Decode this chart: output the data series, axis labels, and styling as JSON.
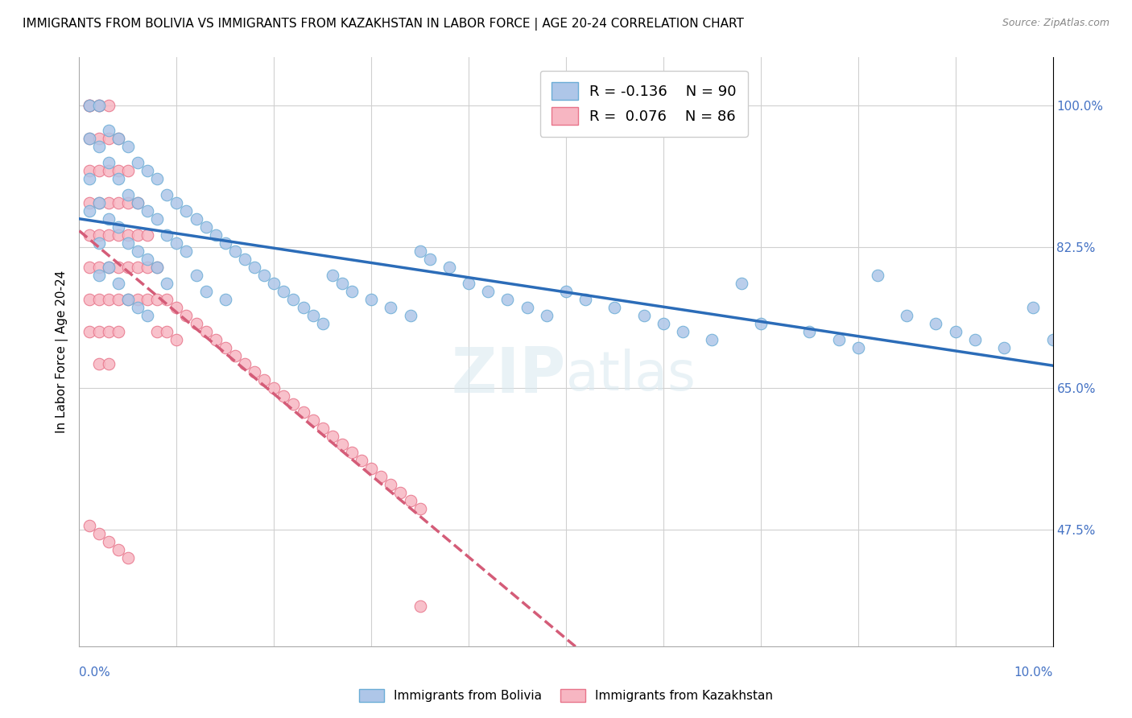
{
  "title": "IMMIGRANTS FROM BOLIVIA VS IMMIGRANTS FROM KAZAKHSTAN IN LABOR FORCE | AGE 20-24 CORRELATION CHART",
  "source_text": "Source: ZipAtlas.com",
  "ylabel": "In Labor Force | Age 20-24",
  "y_ticks": [
    0.475,
    0.65,
    0.825,
    1.0
  ],
  "y_tick_labels": [
    "47.5%",
    "65.0%",
    "82.5%",
    "100.0%"
  ],
  "xmin": 0.0,
  "xmax": 0.1,
  "ymin": 0.33,
  "ymax": 1.06,
  "bolivia_color": "#aec6e8",
  "bolivia_edge_color": "#6badd6",
  "kazakhstan_color": "#f7b6c2",
  "kazakhstan_edge_color": "#e8748a",
  "trend_bolivia_color": "#2b6cb8",
  "trend_kazakhstan_color": "#d45c78",
  "legend_R_bolivia": "-0.136",
  "legend_N_bolivia": "90",
  "legend_R_kazakhstan": "0.076",
  "legend_N_kazakhstan": "86",
  "watermark": "ZIPatlas",
  "bolivia_x": [
    0.001,
    0.001,
    0.001,
    0.001,
    0.002,
    0.002,
    0.002,
    0.002,
    0.002,
    0.003,
    0.003,
    0.003,
    0.003,
    0.004,
    0.004,
    0.004,
    0.004,
    0.005,
    0.005,
    0.005,
    0.005,
    0.006,
    0.006,
    0.006,
    0.006,
    0.007,
    0.007,
    0.007,
    0.007,
    0.008,
    0.008,
    0.008,
    0.009,
    0.009,
    0.009,
    0.01,
    0.01,
    0.011,
    0.011,
    0.012,
    0.012,
    0.013,
    0.013,
    0.014,
    0.015,
    0.015,
    0.016,
    0.017,
    0.018,
    0.019,
    0.02,
    0.021,
    0.022,
    0.023,
    0.024,
    0.025,
    0.026,
    0.027,
    0.028,
    0.03,
    0.032,
    0.034,
    0.035,
    0.036,
    0.038,
    0.04,
    0.042,
    0.044,
    0.046,
    0.048,
    0.05,
    0.052,
    0.055,
    0.058,
    0.06,
    0.062,
    0.065,
    0.068,
    0.07,
    0.075,
    0.078,
    0.08,
    0.082,
    0.085,
    0.088,
    0.09,
    0.092,
    0.095,
    0.098,
    0.1
  ],
  "bolivia_y": [
    1.0,
    0.96,
    0.91,
    0.87,
    1.0,
    0.95,
    0.88,
    0.83,
    0.79,
    0.97,
    0.93,
    0.86,
    0.8,
    0.96,
    0.91,
    0.85,
    0.78,
    0.95,
    0.89,
    0.83,
    0.76,
    0.93,
    0.88,
    0.82,
    0.75,
    0.92,
    0.87,
    0.81,
    0.74,
    0.91,
    0.86,
    0.8,
    0.89,
    0.84,
    0.78,
    0.88,
    0.83,
    0.87,
    0.82,
    0.86,
    0.79,
    0.85,
    0.77,
    0.84,
    0.83,
    0.76,
    0.82,
    0.81,
    0.8,
    0.79,
    0.78,
    0.77,
    0.76,
    0.75,
    0.74,
    0.73,
    0.79,
    0.78,
    0.77,
    0.76,
    0.75,
    0.74,
    0.82,
    0.81,
    0.8,
    0.78,
    0.77,
    0.76,
    0.75,
    0.74,
    0.77,
    0.76,
    0.75,
    0.74,
    0.73,
    0.72,
    0.71,
    0.78,
    0.73,
    0.72,
    0.71,
    0.7,
    0.79,
    0.74,
    0.73,
    0.72,
    0.71,
    0.7,
    0.75,
    0.71
  ],
  "kazakhstan_x": [
    0.001,
    0.001,
    0.001,
    0.001,
    0.001,
    0.001,
    0.001,
    0.001,
    0.001,
    0.001,
    0.002,
    0.002,
    0.002,
    0.002,
    0.002,
    0.002,
    0.002,
    0.002,
    0.002,
    0.002,
    0.003,
    0.003,
    0.003,
    0.003,
    0.003,
    0.003,
    0.003,
    0.003,
    0.003,
    0.004,
    0.004,
    0.004,
    0.004,
    0.004,
    0.004,
    0.004,
    0.005,
    0.005,
    0.005,
    0.005,
    0.005,
    0.006,
    0.006,
    0.006,
    0.006,
    0.007,
    0.007,
    0.007,
    0.008,
    0.008,
    0.008,
    0.009,
    0.009,
    0.01,
    0.01,
    0.011,
    0.012,
    0.013,
    0.014,
    0.015,
    0.016,
    0.017,
    0.018,
    0.019,
    0.02,
    0.021,
    0.022,
    0.023,
    0.024,
    0.025,
    0.026,
    0.027,
    0.028,
    0.029,
    0.03,
    0.031,
    0.032,
    0.033,
    0.034,
    0.035,
    0.001,
    0.002,
    0.003,
    0.004,
    0.005,
    0.035
  ],
  "kazakhstan_y": [
    1.0,
    1.0,
    1.0,
    0.96,
    0.92,
    0.88,
    0.84,
    0.8,
    0.76,
    0.72,
    1.0,
    1.0,
    0.96,
    0.92,
    0.88,
    0.84,
    0.8,
    0.76,
    0.72,
    0.68,
    1.0,
    0.96,
    0.92,
    0.88,
    0.84,
    0.8,
    0.76,
    0.72,
    0.68,
    0.96,
    0.92,
    0.88,
    0.84,
    0.8,
    0.76,
    0.72,
    0.92,
    0.88,
    0.84,
    0.8,
    0.76,
    0.88,
    0.84,
    0.8,
    0.76,
    0.84,
    0.8,
    0.76,
    0.8,
    0.76,
    0.72,
    0.76,
    0.72,
    0.75,
    0.71,
    0.74,
    0.73,
    0.72,
    0.71,
    0.7,
    0.69,
    0.68,
    0.67,
    0.66,
    0.65,
    0.64,
    0.63,
    0.62,
    0.61,
    0.6,
    0.59,
    0.58,
    0.57,
    0.56,
    0.55,
    0.54,
    0.53,
    0.52,
    0.51,
    0.5,
    0.48,
    0.47,
    0.46,
    0.45,
    0.44,
    0.38
  ]
}
